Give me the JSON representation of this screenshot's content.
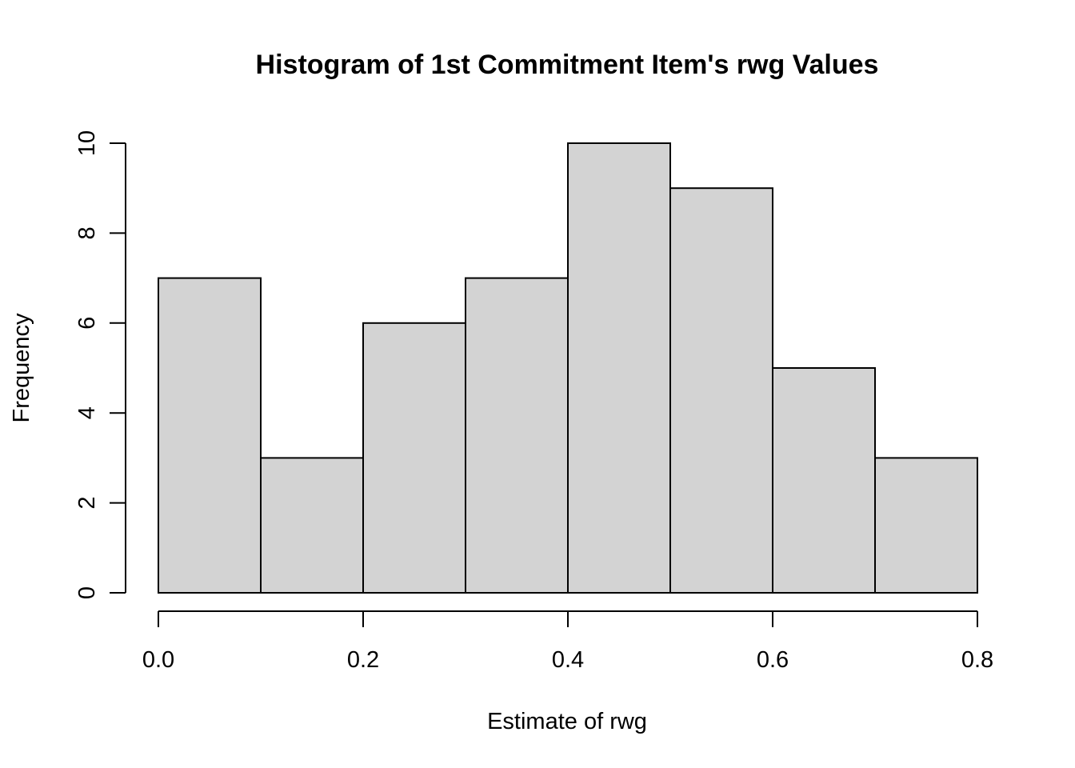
{
  "chart_data": {
    "type": "bar",
    "title": "Histogram of 1st Commitment Item's rwg Values",
    "xlabel": "Estimate of rwg",
    "ylabel": "Frequency",
    "bin_edges": [
      0.0,
      0.1,
      0.2,
      0.3,
      0.4,
      0.5,
      0.6,
      0.7,
      0.8
    ],
    "values": [
      7,
      3,
      6,
      7,
      10,
      9,
      5,
      3
    ],
    "xlim": [
      0.0,
      0.8
    ],
    "ylim": [
      0,
      10
    ],
    "x_ticks": [
      0.0,
      0.2,
      0.4,
      0.6,
      0.8
    ],
    "x_tick_labels": [
      "0.0",
      "0.2",
      "0.4",
      "0.6",
      "0.8"
    ],
    "y_ticks": [
      0,
      2,
      4,
      6,
      8,
      10
    ],
    "y_tick_labels": [
      "0",
      "2",
      "4",
      "6",
      "8",
      "10"
    ],
    "bar_color": "#d3d3d3",
    "grid": false
  }
}
